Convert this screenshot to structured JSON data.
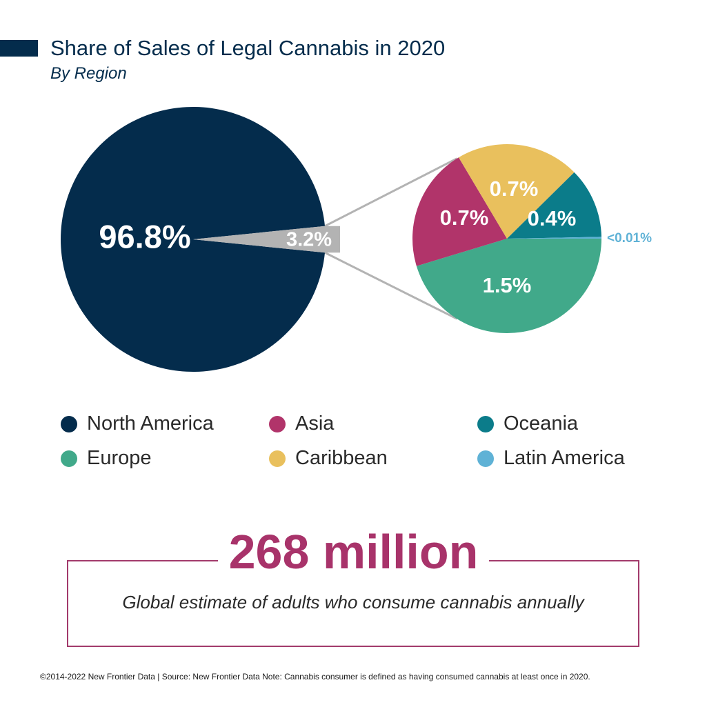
{
  "header": {
    "title": "Share of Sales of Legal Cannabis in 2020",
    "subtitle": "By Region"
  },
  "chart_data": [
    {
      "type": "pie",
      "slices": [
        {
          "label": "North America",
          "value": 96.8,
          "display": "96.8%",
          "color": "#042c4c"
        },
        {
          "label": "",
          "value": 3.2,
          "display": "3.2%",
          "color": "#b3b3b3"
        }
      ]
    },
    {
      "type": "pie",
      "slices": [
        {
          "label": "Europe",
          "value": 1.5,
          "display": "1.5%",
          "color": "#41a98a"
        },
        {
          "label": "Asia",
          "value": 0.7,
          "display": "0.7%",
          "color": "#b1346a"
        },
        {
          "label": "Caribbean",
          "value": 0.7,
          "display": "0.7%",
          "color": "#e9c05d"
        },
        {
          "label": "Oceania",
          "value": 0.4,
          "display": "0.4%",
          "color": "#0b7c8a"
        },
        {
          "label": "Latin America",
          "value": 0.01,
          "display": "<0.01%",
          "color": "#5fb2d6"
        }
      ]
    }
  ],
  "legend": [
    {
      "label": "North America",
      "color": "#042c4c"
    },
    {
      "label": "Asia",
      "color": "#b1346a"
    },
    {
      "label": "Oceania",
      "color": "#0b7c8a"
    },
    {
      "label": "Europe",
      "color": "#41a98a"
    },
    {
      "label": "Caribbean",
      "color": "#e9c05d"
    },
    {
      "label": "Latin America",
      "color": "#5fb2d6"
    }
  ],
  "stat": {
    "value": "268 million",
    "caption": "Global estimate of adults who consume cannabis annually"
  },
  "footer": "©2014-2022 New Frontier Data | Source: New Frontier Data   Note: Cannabis consumer is defined as having consumed cannabis at least once in 2020."
}
